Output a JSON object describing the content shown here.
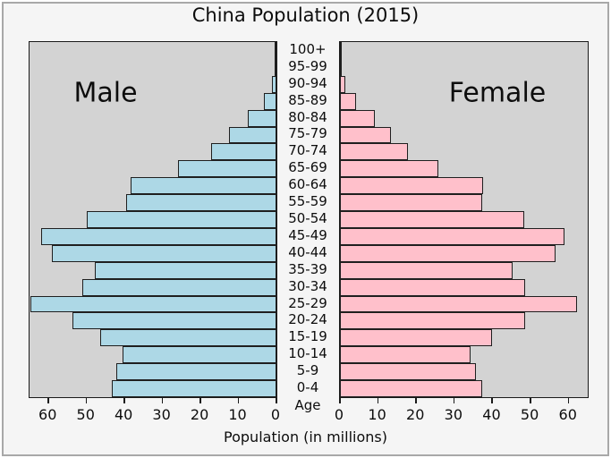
{
  "title": "China Population (2015)",
  "left_panel_label": "Male",
  "right_panel_label": "Female",
  "center_axis_label": "Age",
  "x_axis_label": "Population (in millions)",
  "colors": {
    "male_bar": "#add8e6",
    "female_bar": "#ffc0cb",
    "bar_edge": "#1f1f1f",
    "plot_background": "#d3d3d3",
    "figure_background": "#f5f5f5"
  },
  "chart_data": {
    "type": "bar",
    "subtype": "population-pyramid",
    "title": "China Population (2015)",
    "xlabel": "Population (in millions)",
    "age_axis_label": "Age",
    "categories_top_to_bottom": [
      "100+",
      "95-99",
      "90-94",
      "85-89",
      "80-84",
      "75-79",
      "70-74",
      "65-69",
      "60-64",
      "55-59",
      "50-54",
      "45-49",
      "40-44",
      "35-39",
      "30-34",
      "25-29",
      "20-24",
      "15-19",
      "10-14",
      "5-9",
      "0-4"
    ],
    "series": [
      {
        "name": "Male",
        "side": "left",
        "values": [
          0.1,
          0.3,
          1.2,
          3.2,
          7.5,
          12.4,
          17.3,
          26.0,
          38.3,
          39.5,
          50.0,
          62.0,
          59.0,
          47.7,
          51.2,
          64.8,
          53.8,
          46.5,
          40.4,
          42.1,
          43.3
        ]
      },
      {
        "name": "Female",
        "side": "right",
        "values": [
          0.2,
          0.5,
          1.5,
          4.2,
          9.2,
          13.4,
          17.9,
          25.7,
          37.6,
          37.3,
          48.3,
          59.0,
          56.5,
          45.4,
          48.5,
          62.1,
          48.5,
          40.0,
          34.3,
          35.7,
          37.4
        ]
      }
    ],
    "x_ticks": [
      0,
      10,
      20,
      30,
      40,
      50,
      60
    ],
    "xlim": [
      0,
      65
    ],
    "grid": false,
    "legend": "none (panel annotations Male / Female)"
  }
}
